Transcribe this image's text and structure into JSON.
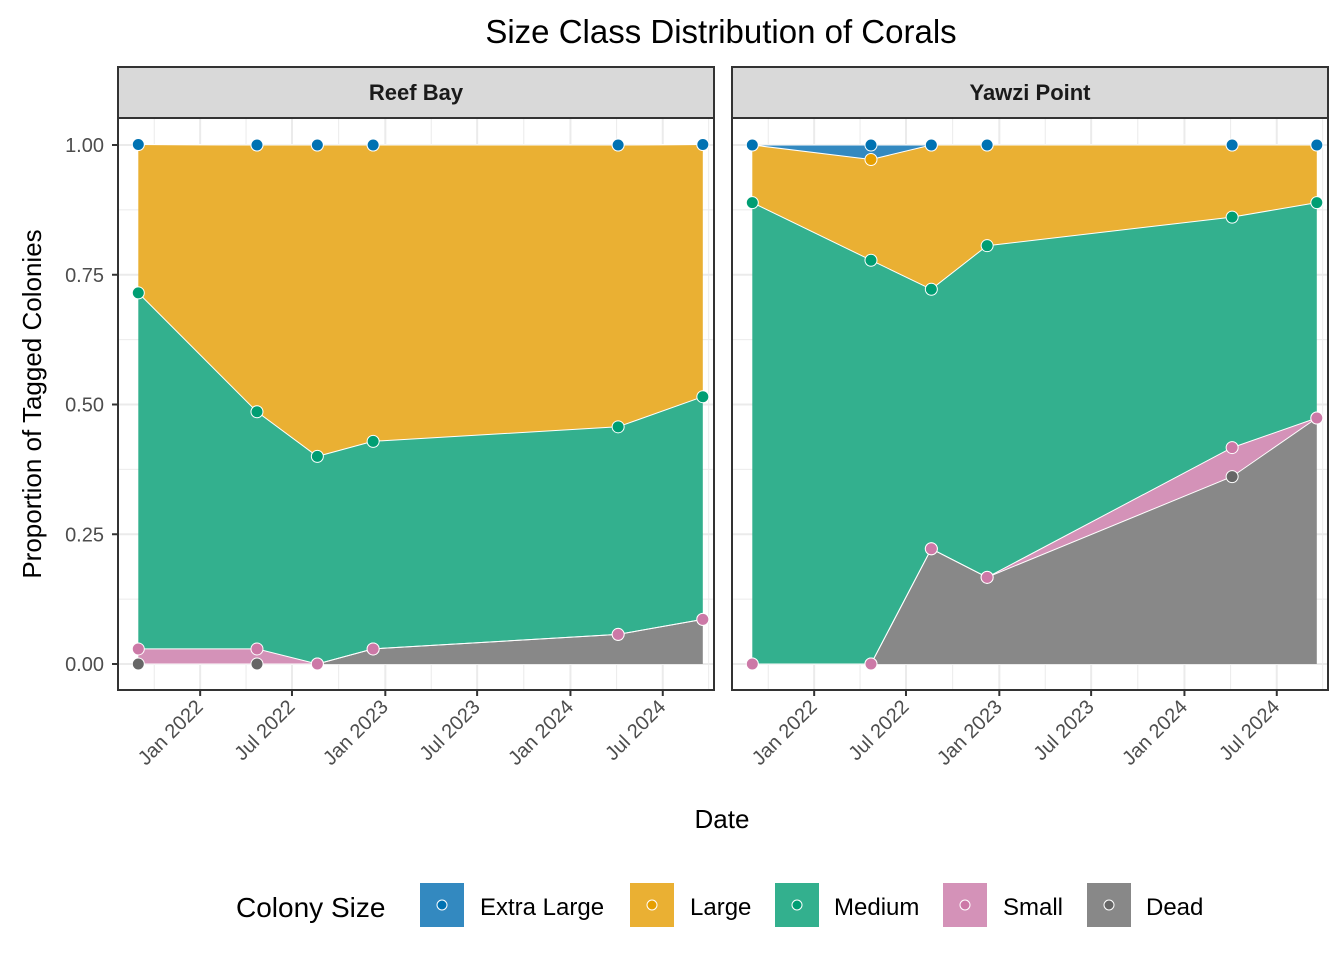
{
  "chart_data": {
    "type": "area",
    "title": "Size Class Distribution of Corals",
    "xlabel": "Date",
    "ylabel": "Proportion of Tagged Colonies",
    "ylim": [
      0,
      1
    ],
    "y_ticks": [
      "0.00",
      "0.25",
      "0.50",
      "0.75",
      "1.00"
    ],
    "y_tick_values": [
      0,
      0.25,
      0.5,
      0.75,
      1.0
    ],
    "x_ticks": [
      "Jan 2022",
      "Jul 2022",
      "Jan 2023",
      "Jul 2023",
      "Jan 2024",
      "Jul 2024"
    ],
    "x_tick_dates": [
      "2022-01-01",
      "2022-07-01",
      "2023-01-01",
      "2023-07-01",
      "2024-01-01",
      "2024-07-01"
    ],
    "xlim": [
      "2021-07-23",
      "2024-10-10"
    ],
    "grid": true,
    "stacked": true,
    "legend": {
      "title": "Colony Size",
      "position": "bottom",
      "entries": [
        {
          "name": "Extra Large",
          "fill": "#3389C0",
          "point": "#0072B2"
        },
        {
          "name": "Large",
          "fill": "#EAB033",
          "point": "#E69F00"
        },
        {
          "name": "Medium",
          "fill": "#33B08E",
          "point": "#009E73"
        },
        {
          "name": "Small",
          "fill": "#D492B8",
          "point": "#CC79A7"
        },
        {
          "name": "Dead",
          "fill": "#888888",
          "point": "#666666"
        }
      ]
    },
    "stack_order_bottom_to_top": [
      "Dead",
      "Small",
      "Medium",
      "Large",
      "Extra Large"
    ],
    "panels": [
      {
        "name": "Reef Bay",
        "x": [
          "2021-09-01",
          "2022-04-23",
          "2022-08-20",
          "2022-12-08",
          "2024-04-04",
          "2024-09-18"
        ],
        "series": [
          {
            "name": "Dead",
            "values": [
              0,
              0,
              0,
              0.029,
              0.057,
              0.086
            ]
          },
          {
            "name": "Small",
            "values": [
              0.029,
              0.029,
              0,
              0,
              0,
              0
            ]
          },
          {
            "name": "Medium",
            "values": [
              0.686,
              0.457,
              0.4,
              0.4,
              0.4,
              0.429
            ]
          },
          {
            "name": "Large",
            "values": [
              0.286,
              0.514,
              0.6,
              0.571,
              0.543,
              0.486
            ]
          },
          {
            "name": "Extra Large",
            "values": [
              0,
              0,
              0,
              0,
              0,
              0
            ]
          }
        ]
      },
      {
        "name": "Yawzi Point",
        "x": [
          "2021-09-01",
          "2022-04-23",
          "2022-08-20",
          "2022-12-08",
          "2024-04-04",
          "2024-09-18"
        ],
        "series": [
          {
            "name": "Dead",
            "values": [
              0,
              0,
              0.222,
              0.167,
              0.361,
              0.474
            ]
          },
          {
            "name": "Small",
            "values": [
              0,
              0,
              0,
              0,
              0.056,
              0
            ]
          },
          {
            "name": "Medium",
            "values": [
              0.889,
              0.778,
              0.5,
              0.639,
              0.444,
              0.415
            ]
          },
          {
            "name": "Large",
            "values": [
              0.111,
              0.194,
              0.278,
              0.194,
              0.139,
              0.111
            ]
          },
          {
            "name": "Extra Large",
            "values": [
              0,
              0.028,
              0,
              0,
              0,
              0
            ]
          }
        ]
      }
    ]
  }
}
